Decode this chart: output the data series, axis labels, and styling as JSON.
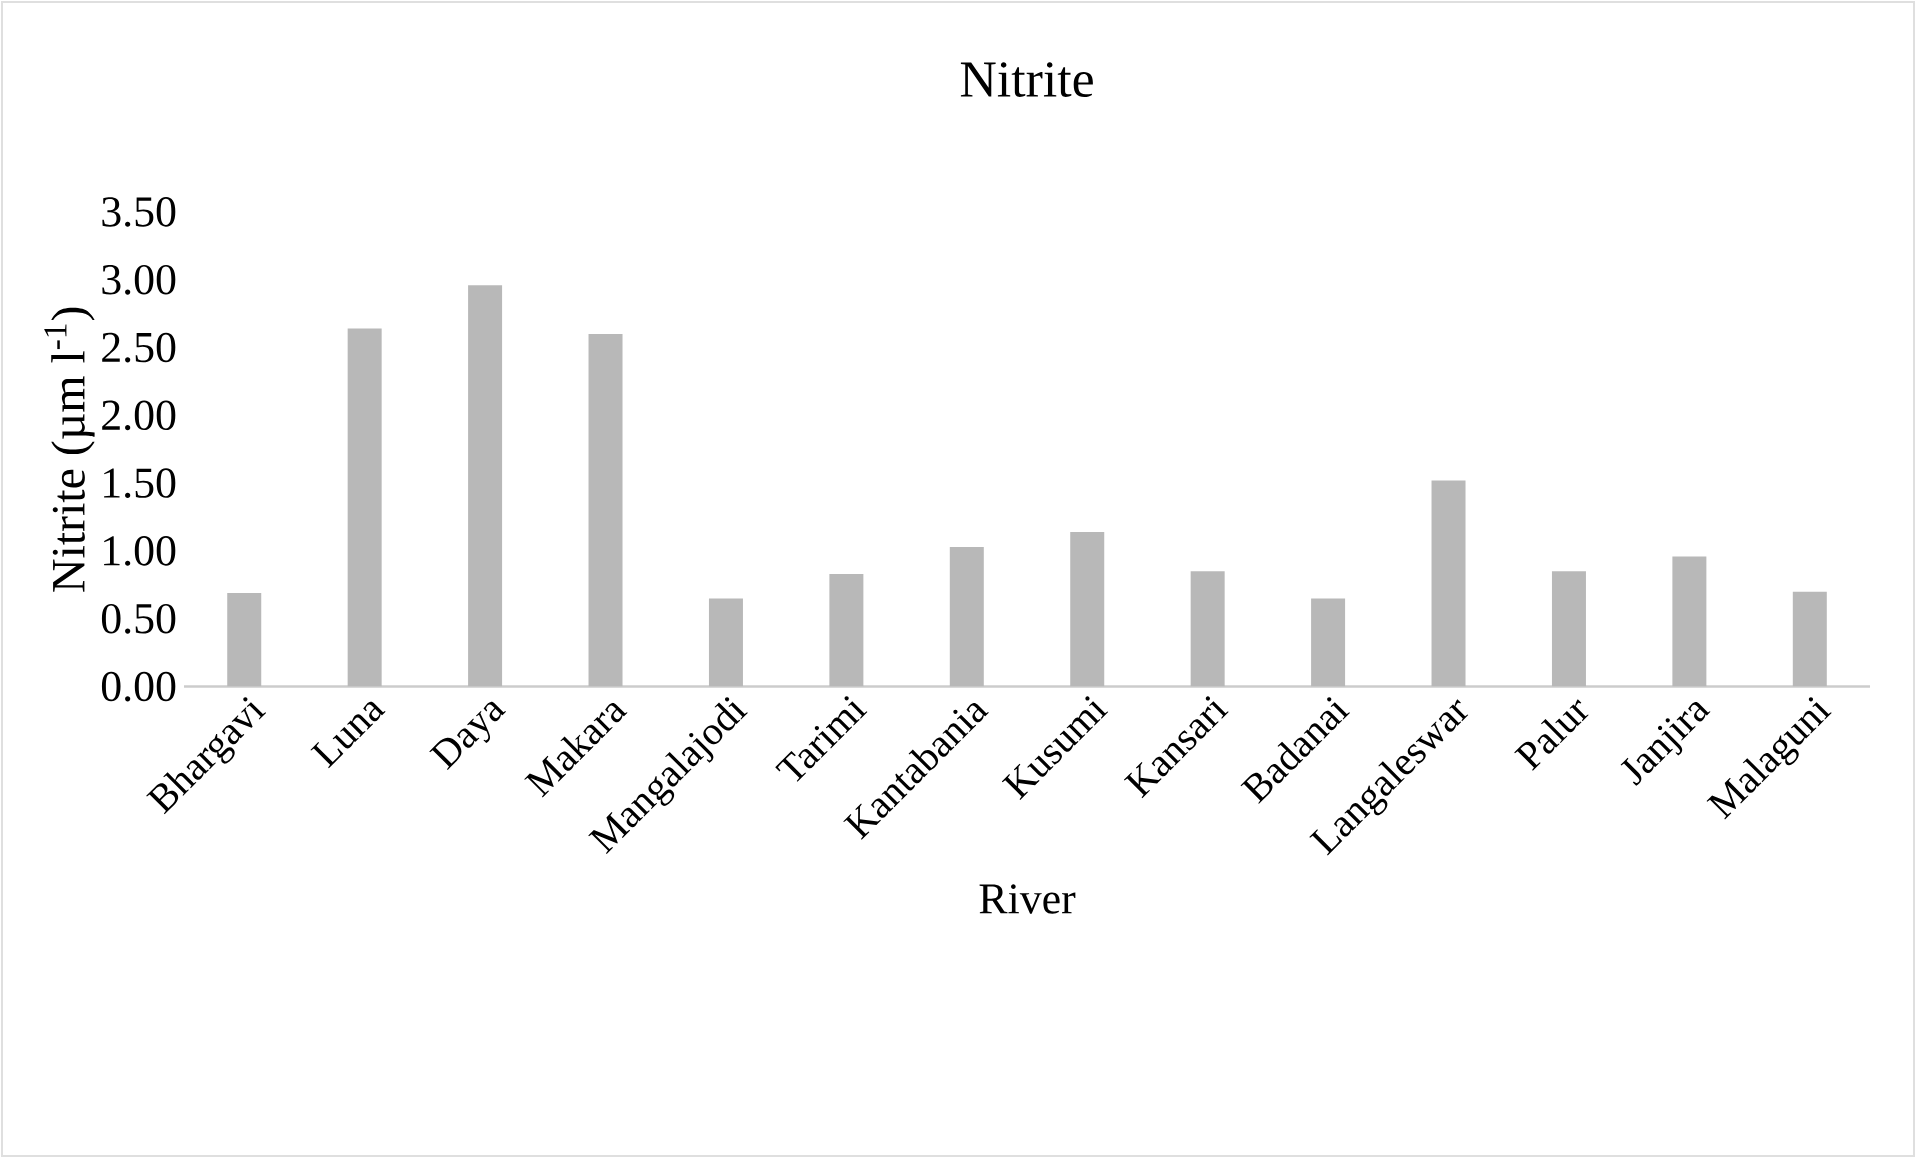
{
  "chart_data": {
    "type": "bar",
    "title": "Nitrite",
    "xlabel": "River",
    "ylabel": "Nitrite (µm l$^{-1}$)",
    "categories": [
      "Bhargavi",
      "Luna",
      "Daya",
      "Makara",
      "Mangalajodi",
      "Tarimi",
      "Kantabania",
      "Kusumi",
      "Kansari",
      "Badanai",
      "Langaleswar",
      "Palur",
      "Janjira",
      "Malaguni"
    ],
    "values": [
      0.69,
      2.64,
      2.96,
      2.6,
      0.65,
      0.83,
      1.03,
      1.14,
      0.85,
      0.65,
      1.52,
      0.85,
      0.96,
      0.7
    ],
    "color": "#b8b8b8",
    "ylim": [
      0,
      3.5
    ],
    "yticks": [
      {
        "value": 0,
        "label": "0.00"
      },
      {
        "value": 0.5,
        "label": "0.50"
      },
      {
        "value": 1,
        "label": "1.00"
      },
      {
        "value": 1.5,
        "label": "1.50"
      },
      {
        "value": 2,
        "label": "2.00"
      },
      {
        "value": 2.5,
        "label": "2.50"
      },
      {
        "value": 3,
        "label": "3.00"
      },
      {
        "value": 3.5,
        "label": "3.50"
      }
    ]
  }
}
